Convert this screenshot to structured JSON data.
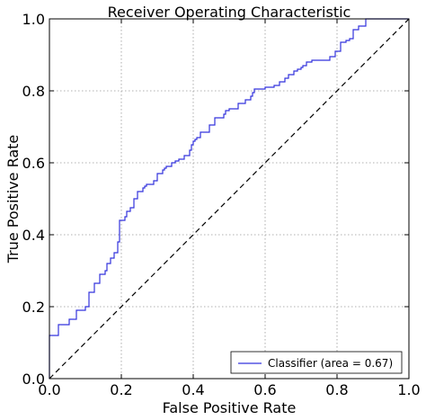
{
  "chart_data": {
    "type": "line",
    "title": "Receiver Operating Characteristic",
    "xlabel": "False Positive Rate",
    "ylabel": "True Positive Rate",
    "xlim": [
      0.0,
      1.0
    ],
    "ylim": [
      0.0,
      1.0
    ],
    "xticks": [
      "0.0",
      "0.2",
      "0.4",
      "0.6",
      "0.8",
      "1.0"
    ],
    "yticks": [
      "0.0",
      "0.2",
      "0.4",
      "0.6",
      "0.8",
      "1.0"
    ],
    "grid": true,
    "legend_position": "lower-right",
    "series": [
      {
        "name": "Classifier (area = 0.67)",
        "color": "#3333dd",
        "style": "step",
        "x": [
          0.0,
          0.0,
          0.025,
          0.025,
          0.055,
          0.055,
          0.075,
          0.075,
          0.1,
          0.1,
          0.11,
          0.11,
          0.125,
          0.125,
          0.14,
          0.14,
          0.155,
          0.155,
          0.16,
          0.16,
          0.17,
          0.17,
          0.18,
          0.18,
          0.19,
          0.19,
          0.195,
          0.195,
          0.21,
          0.21,
          0.215,
          0.215,
          0.225,
          0.225,
          0.235,
          0.235,
          0.245,
          0.245,
          0.26,
          0.26,
          0.265,
          0.265,
          0.27,
          0.27,
          0.29,
          0.29,
          0.3,
          0.3,
          0.315,
          0.315,
          0.32,
          0.32,
          0.325,
          0.325,
          0.34,
          0.34,
          0.35,
          0.35,
          0.36,
          0.36,
          0.375,
          0.375,
          0.39,
          0.39,
          0.395,
          0.395,
          0.4,
          0.4,
          0.405,
          0.405,
          0.41,
          0.41,
          0.42,
          0.42,
          0.445,
          0.445,
          0.46,
          0.46,
          0.485,
          0.485,
          0.49,
          0.49,
          0.5,
          0.5,
          0.525,
          0.525,
          0.545,
          0.545,
          0.56,
          0.56,
          0.565,
          0.565,
          0.57,
          0.57,
          0.6,
          0.6,
          0.625,
          0.625,
          0.64,
          0.64,
          0.655,
          0.655,
          0.665,
          0.665,
          0.68,
          0.68,
          0.69,
          0.69,
          0.7,
          0.7,
          0.705,
          0.705,
          0.715,
          0.715,
          0.73,
          0.73,
          0.78,
          0.78,
          0.795,
          0.795,
          0.81,
          0.81,
          0.825,
          0.825,
          0.835,
          0.835,
          0.845,
          0.845,
          0.86,
          0.86,
          0.88,
          0.88,
          1.0
        ],
        "y": [
          0.0,
          0.12,
          0.12,
          0.15,
          0.15,
          0.165,
          0.165,
          0.19,
          0.19,
          0.2,
          0.2,
          0.24,
          0.24,
          0.265,
          0.265,
          0.29,
          0.29,
          0.3,
          0.3,
          0.32,
          0.32,
          0.335,
          0.335,
          0.35,
          0.35,
          0.38,
          0.38,
          0.44,
          0.44,
          0.45,
          0.45,
          0.465,
          0.465,
          0.475,
          0.475,
          0.5,
          0.5,
          0.52,
          0.52,
          0.53,
          0.53,
          0.535,
          0.535,
          0.54,
          0.54,
          0.55,
          0.55,
          0.57,
          0.57,
          0.58,
          0.58,
          0.585,
          0.585,
          0.59,
          0.59,
          0.6,
          0.6,
          0.605,
          0.605,
          0.61,
          0.61,
          0.62,
          0.62,
          0.635,
          0.635,
          0.65,
          0.65,
          0.66,
          0.66,
          0.665,
          0.665,
          0.67,
          0.67,
          0.685,
          0.685,
          0.705,
          0.705,
          0.725,
          0.725,
          0.735,
          0.735,
          0.745,
          0.745,
          0.75,
          0.75,
          0.765,
          0.765,
          0.775,
          0.775,
          0.785,
          0.785,
          0.795,
          0.795,
          0.805,
          0.805,
          0.81,
          0.81,
          0.815,
          0.815,
          0.825,
          0.825,
          0.835,
          0.835,
          0.845,
          0.845,
          0.855,
          0.855,
          0.86,
          0.86,
          0.865,
          0.865,
          0.87,
          0.87,
          0.88,
          0.88,
          0.885,
          0.885,
          0.895,
          0.895,
          0.91,
          0.91,
          0.935,
          0.935,
          0.94,
          0.94,
          0.945,
          0.945,
          0.97,
          0.97,
          0.98,
          0.98,
          1.0,
          1.0
        ]
      },
      {
        "name": "",
        "color": "#000000",
        "style": "dashed",
        "x": [
          0.0,
          1.0
        ],
        "y": [
          0.0,
          1.0
        ]
      }
    ]
  }
}
